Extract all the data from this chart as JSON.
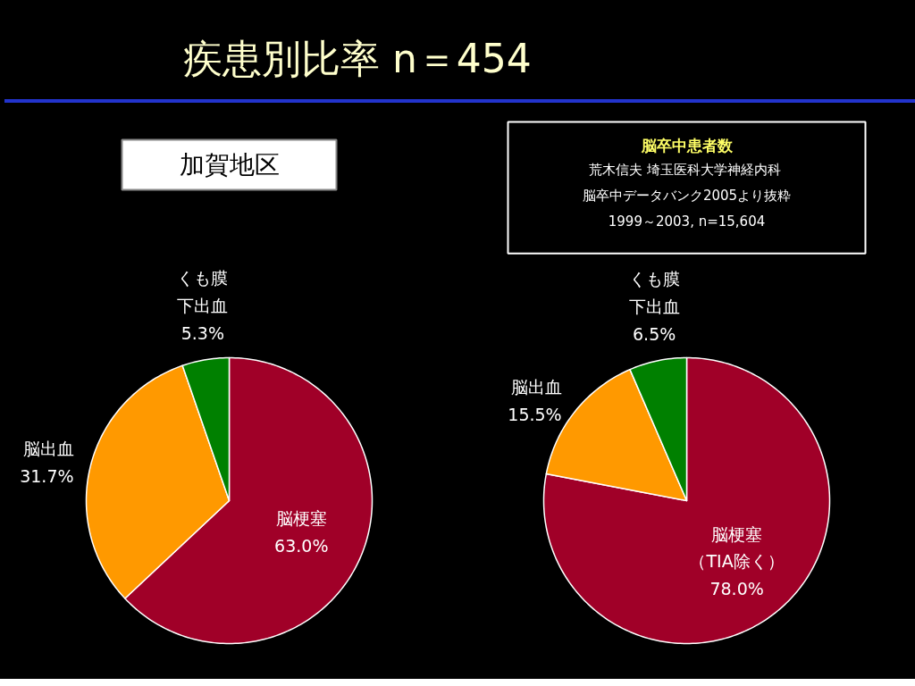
{
  "chart_data": [
    {
      "type": "pie",
      "title": "疾患別比率 n＝454",
      "subtitle": "加賀地区",
      "categories": [
        "脳梗塞",
        "脳出血",
        "くも膜下出血"
      ],
      "values": [
        63.0,
        31.7,
        5.3
      ],
      "value_labels": [
        "63.0%",
        "31.7%",
        "5.3%"
      ],
      "colors": [
        "#a00028",
        "#ff9900",
        "#008000"
      ]
    },
    {
      "type": "pie",
      "title": "脳卒中患者数",
      "annotations": [
        "荒木信夫  埼玉医科大学神経内科",
        "脳卒中データバンク2005より抜粋",
        "1999～2003, n=15,604"
      ],
      "categories": [
        "脳梗塞（TIA除く）",
        "脳出血",
        "くも膜下出血"
      ],
      "values": [
        78.0,
        15.5,
        6.5
      ],
      "value_labels": [
        "78.0%",
        "15.5%",
        "6.5%"
      ],
      "colors": [
        "#a00028",
        "#ff9900",
        "#008000"
      ]
    }
  ]
}
